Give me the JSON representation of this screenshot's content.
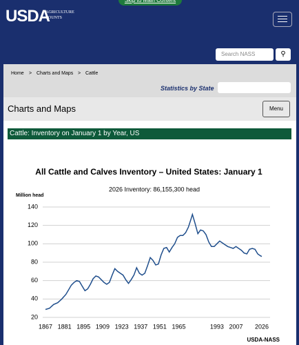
{
  "skip_link": "Skip to Main Content",
  "logo": {
    "name": "USDA",
    "tagline": "AGRICULTURE COUNTS"
  },
  "search": {
    "placeholder": "Search NASS"
  },
  "breadcrumb": {
    "items": [
      "Home",
      "Charts and Maps",
      "Cattle"
    ],
    "separator": ">"
  },
  "state_label": "Statistics by State",
  "section": {
    "title": "Charts and Maps",
    "menu": "Menu"
  },
  "panel_title": "Cattle: Inventory on January 1 by Year, US",
  "chart_data": {
    "type": "line",
    "title": "All Cattle and Calves Inventory – United States: January 1",
    "subtitle": "2026 Inventory: 86,155,300 head",
    "y_label": "Million head",
    "source": "USDA-NASS",
    "x": [
      1867,
      1870,
      1873,
      1876,
      1879,
      1882,
      1884,
      1886,
      1888,
      1890,
      1892,
      1894,
      1896,
      1898,
      1900,
      1902,
      1904,
      1906,
      1908,
      1910,
      1912,
      1914,
      1916,
      1918,
      1920,
      1922,
      1924,
      1926,
      1928,
      1930,
      1932,
      1934,
      1936,
      1938,
      1940,
      1942,
      1944,
      1946,
      1948,
      1950,
      1952,
      1954,
      1956,
      1958,
      1960,
      1962,
      1964,
      1966,
      1968,
      1970,
      1972,
      1974,
      1975,
      1977,
      1979,
      1981,
      1983,
      1985,
      1987,
      1989,
      1991,
      1993,
      1995,
      1997,
      1999,
      2001,
      2003,
      2005,
      2007,
      2009,
      2011,
      2013,
      2015,
      2017,
      2019,
      2021,
      2023,
      2025,
      2026
    ],
    "series": [
      {
        "name": "Inventory",
        "color": "#1f4e8c",
        "values": [
          28.6,
          30,
          34,
          36,
          40,
          45,
          50,
          55,
          58,
          60,
          59,
          54,
          49,
          51,
          56,
          62,
          65,
          64,
          61,
          58,
          56,
          58,
          66,
          73,
          70,
          68,
          66,
          61,
          57,
          61,
          66,
          74,
          68,
          66,
          68,
          76,
          85,
          82,
          77,
          78,
          88,
          95,
          96,
          91,
          96,
          100,
          107,
          109,
          109,
          112,
          118,
          127,
          132,
          122,
          111,
          115,
          114,
          110,
          102,
          97,
          97,
          100,
          103,
          101,
          99,
          97,
          96,
          95,
          97,
          95,
          93,
          90,
          89,
          94,
          95,
          94,
          89,
          87,
          86.2
        ]
      }
    ],
    "xlim": [
      1867,
      2026
    ],
    "xticks": [
      1867,
      1881,
      1895,
      1909,
      1923,
      1937,
      1951,
      1965,
      1993,
      2007,
      2026
    ],
    "ylim": [
      20,
      140
    ],
    "yticks": [
      20,
      40,
      60,
      80,
      100,
      120,
      140
    ],
    "grid": true
  }
}
